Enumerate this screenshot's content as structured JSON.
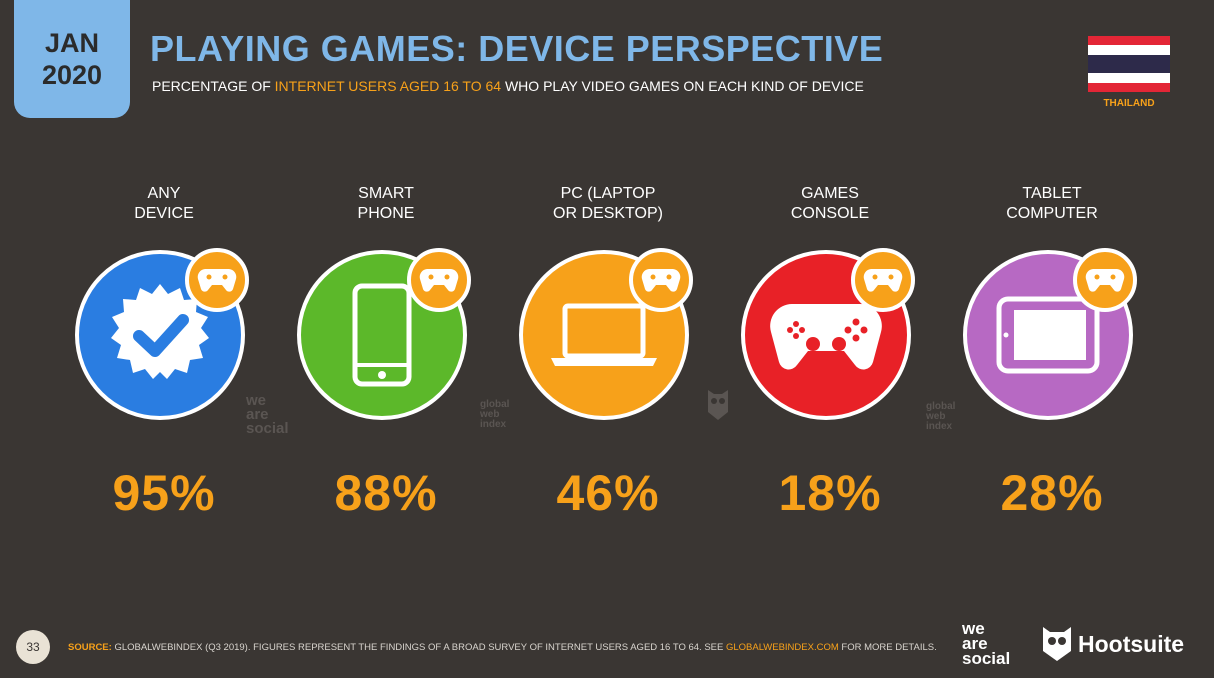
{
  "date_badge": {
    "month": "JAN",
    "year": "2020"
  },
  "title": "PLAYING GAMES: DEVICE PERSPECTIVE",
  "subtitle": {
    "prefix": "PERCENTAGE OF ",
    "highlight": "INTERNET USERS AGED 16 TO 64",
    "suffix": " WHO PLAY VIDEO GAMES ON EACH KIND OF DEVICE"
  },
  "country": "THAILAND",
  "colors": {
    "background": "#3a3633",
    "accent_blue": "#7fb7e8",
    "accent_orange": "#f7a11a",
    "flag_red": "#e32636",
    "flag_white": "#ffffff",
    "flag_blue": "#2d2a4a"
  },
  "devices": [
    {
      "label_1": "ANY",
      "label_2": "DEVICE",
      "value": "95%",
      "color": "#2a7de1",
      "icon": "check-badge-icon"
    },
    {
      "label_1": "SMART",
      "label_2": "PHONE",
      "value": "88%",
      "color": "#5cb82a",
      "icon": "smartphone-icon"
    },
    {
      "label_1": "PC (LAPTOP",
      "label_2": "OR DESKTOP)",
      "value": "46%",
      "color": "#f7a11a",
      "icon": "laptop-icon"
    },
    {
      "label_1": "GAMES",
      "label_2": "CONSOLE",
      "value": "18%",
      "color": "#e82127",
      "icon": "gamepad-icon"
    },
    {
      "label_1": "TABLET",
      "label_2": "COMPUTER",
      "value": "28%",
      "color": "#b769c3",
      "icon": "tablet-icon"
    }
  ],
  "watermarks": {
    "we_are_social": [
      "we",
      "are",
      "social"
    ],
    "gwi": [
      "global",
      "web",
      "index"
    ]
  },
  "footer": {
    "page_number": "33",
    "source_label": "SOURCE:",
    "source_text": " GLOBALWEBINDEX (Q3 2019). FIGURES REPRESENT THE FINDINGS OF A BROAD SURVEY OF INTERNET USERS AGED 16 TO 64. SEE ",
    "source_link": "GLOBALWEBINDEX.COM",
    "source_end": " FOR MORE DETAILS.",
    "logo_was": [
      "we",
      "are",
      "social"
    ],
    "logo_hootsuite": "Hootsuite"
  }
}
